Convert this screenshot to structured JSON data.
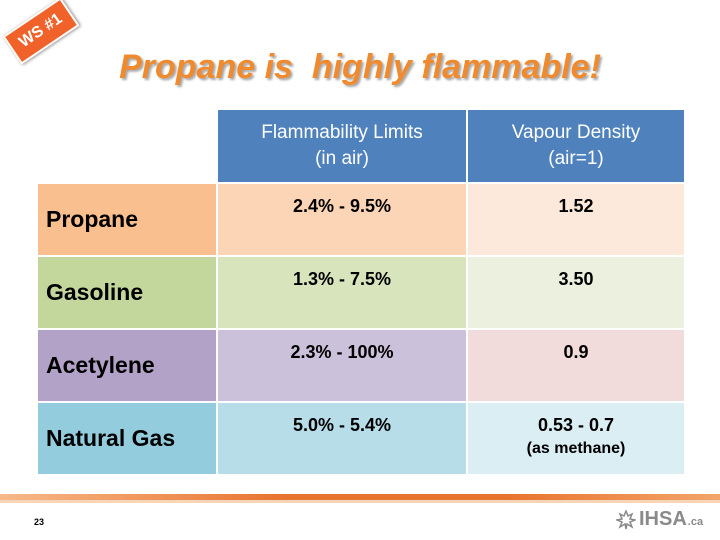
{
  "badge": "WS #1",
  "title": "Propane is  highly flammable!",
  "table": {
    "headers": [
      [
        "Flammability Limits",
        "(in air)"
      ],
      [
        "Vapour Density",
        "(air=1)"
      ]
    ],
    "rows": [
      {
        "name": "Propane",
        "limits": "2.4% - 9.5%",
        "density": "1.52",
        "density_note": ""
      },
      {
        "name": "Gasoline",
        "limits": "1.3% - 7.5%",
        "density": "3.50",
        "density_note": ""
      },
      {
        "name": "Acetylene",
        "limits": "2.3% - 100%",
        "density": "0.9",
        "density_note": ""
      },
      {
        "name": "Natural Gas",
        "limits": "5.0%  - 5.4%",
        "density": "0.53 - 0.7",
        "density_note": "(as methane)"
      }
    ]
  },
  "footer": {
    "page_number": "23",
    "logo_text": "IHSA",
    "logo_suffix": ".ca"
  },
  "colors": {
    "accent": "#f08a2e",
    "header_blue": "#4f81bd",
    "badge": "#f0622a"
  }
}
